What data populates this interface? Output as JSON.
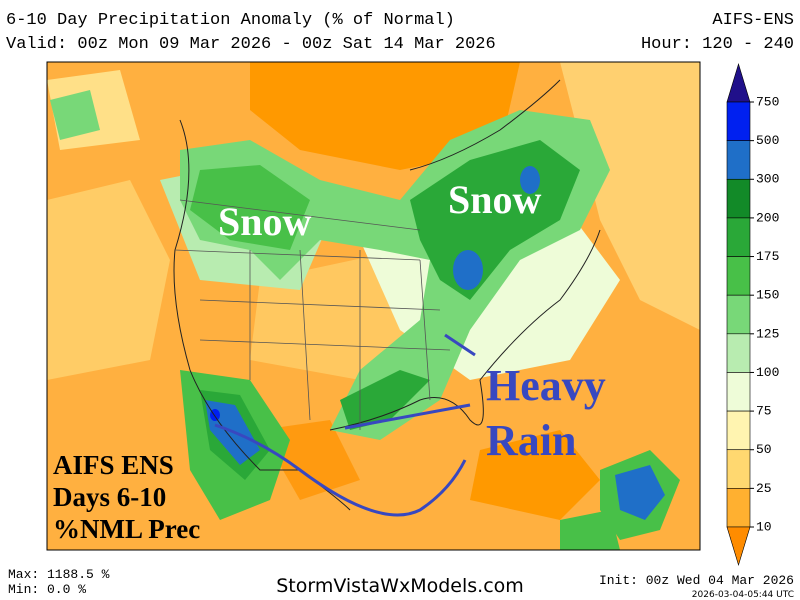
{
  "header": {
    "title": "6-10 Day Precipitation Anomaly (% of Normal)",
    "model": "AIFS-ENS",
    "valid": "Valid: 00z Mon 09 Mar 2026 - 00z Sat 14 Mar 2026",
    "hour": "Hour: 120 - 240"
  },
  "annotations": {
    "snow_west": "Snow",
    "snow_east": "Snow",
    "heavy": "Heavy",
    "rain": "Rain",
    "box": [
      "AIFS ENS",
      "Days 6-10",
      "%NML Prec"
    ]
  },
  "colorbar": {
    "top_color": "#20108a",
    "bottom_color": "#ff8c00",
    "levels": [
      {
        "value": 750,
        "color": "#0020f0"
      },
      {
        "value": 500,
        "color": "#1f6fc8"
      },
      {
        "value": 300,
        "color": "#128a28"
      },
      {
        "value": 200,
        "color": "#2aa838"
      },
      {
        "value": 175,
        "color": "#48c048"
      },
      {
        "value": 150,
        "color": "#78d878"
      },
      {
        "value": 125,
        "color": "#b8ecb0"
      },
      {
        "value": 100,
        "color": "#eefcd8"
      },
      {
        "value": 75,
        "color": "#fff4b0"
      },
      {
        "value": 50,
        "color": "#ffd870"
      },
      {
        "value": 25,
        "color": "#ffb030"
      },
      {
        "value": 10,
        "color": null
      }
    ]
  },
  "footer": {
    "max": "Max: 1188.5 %",
    "min": "Min: 0.0 %",
    "site": "StormVistaWxModels.com",
    "init": "Init: 00z Wed 04 Mar 2026",
    "stamp": "2026-03-04-05:44 UTC"
  }
}
